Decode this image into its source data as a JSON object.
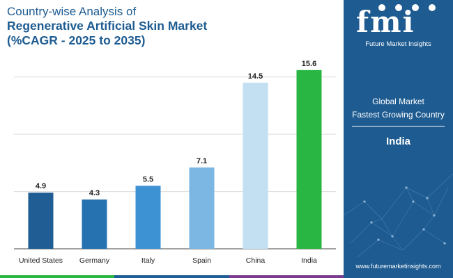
{
  "title": {
    "line1": "Country-wise Analysis of",
    "line2": "Regenerative Artificial Skin Market",
    "line3": "(%CAGR - 2025 to 2035)"
  },
  "chart_data": {
    "type": "bar",
    "title": "Country-wise Analysis of Regenerative Artificial Skin Market (%CAGR - 2025 to 2035)",
    "categories": [
      "United States",
      "Germany",
      "Italy",
      "Spain",
      "China",
      "India"
    ],
    "values": [
      4.9,
      4.3,
      5.5,
      7.1,
      14.5,
      15.6
    ],
    "value_labels": [
      "4.9",
      "4.3",
      "5.5",
      "7.1",
      "14.5",
      "15.6"
    ],
    "colors": [
      "#1f5d94",
      "#2672b0",
      "#3d92d3",
      "#7cb6e3",
      "#c3dff2",
      "#2ab642"
    ],
    "ylim": [
      0,
      16.5
    ],
    "gridlines": [
      0,
      5,
      10,
      15
    ],
    "xlabel": "",
    "ylabel": ""
  },
  "panel": {
    "logo_text": "fmi",
    "logo_sub": "Future Market Insights",
    "line1": "Global Market",
    "line2": "Fastest Growing Country",
    "country": "India",
    "url": "www.futuremarketinsights.com"
  },
  "bottom_bar_colors": [
    "#2ab642",
    "#1f5d94",
    "#7a3c8c"
  ]
}
